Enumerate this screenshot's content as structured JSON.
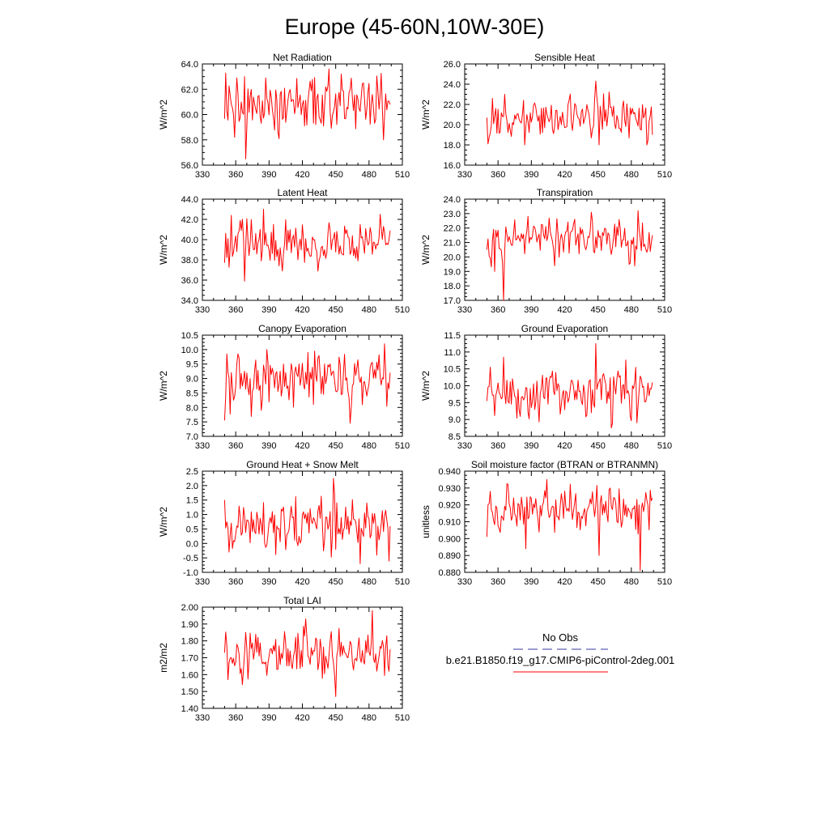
{
  "page": {
    "title": "Europe (45-60N,10W-30E)"
  },
  "legend": {
    "entries": [
      {
        "label": "No Obs",
        "color": "#3a3aa0",
        "style": "dashed"
      },
      {
        "label": "b.e21.B1850.f19_g17.CMIP6-piControl-2deg.001",
        "color": "#ff0000",
        "style": "solid"
      }
    ]
  },
  "line_color": "#ff0000",
  "chart_data": [
    {
      "type": "line",
      "title": "Net Radiation",
      "ylabel": "W/m^2",
      "xlim": [
        330,
        510
      ],
      "ylim": [
        56.0,
        64.0
      ],
      "xticks": [
        330,
        360,
        390,
        420,
        450,
        480,
        510
      ],
      "yticks": [
        56.0,
        58.0,
        60.0,
        62.0,
        64.0
      ],
      "ytick_labels": [
        "56.0",
        "58.0",
        "60.0",
        "62.0",
        "64.0"
      ],
      "x_start": 350,
      "x_end": 499,
      "series": [
        {
          "name": "b.e21.B1850.f19_g17.CMIP6-piControl-2deg.001",
          "mean": 60.9,
          "amplitude": 1.3,
          "anchors": [
            [
              369,
              56.5
            ],
            [
              444,
              63.6
            ],
            [
              352,
              60.3
            ],
            [
              359,
              58.2
            ],
            [
              368,
              63.0
            ],
            [
              399,
              58.1
            ],
            [
              455,
              63.2
            ],
            [
              485,
              59.3
            ],
            [
              499,
              60.8
            ]
          ]
        }
      ]
    },
    {
      "type": "line",
      "title": "Sensible Heat",
      "ylabel": "W/m^2",
      "xlim": [
        330,
        510
      ],
      "ylim": [
        16.0,
        26.0
      ],
      "xticks": [
        330,
        360,
        390,
        420,
        450,
        480,
        510
      ],
      "yticks": [
        16.0,
        18.0,
        20.0,
        22.0,
        24.0,
        26.0
      ],
      "ytick_labels": [
        "16.0",
        "18.0",
        "20.0",
        "22.0",
        "24.0",
        "26.0"
      ],
      "x_start": 350,
      "x_end": 499,
      "series": [
        {
          "name": "b.e21.B1850.f19_g17.CMIP6-piControl-2deg.001",
          "mean": 20.7,
          "amplitude": 1.1,
          "anchors": [
            [
              351,
              18.1
            ],
            [
              448,
              24.3
            ],
            [
              355,
              22.6
            ],
            [
              366,
              23.0
            ],
            [
              384,
              18.0
            ],
            [
              451,
              18.0
            ],
            [
              494,
              18.0
            ],
            [
              499,
              19.0
            ]
          ]
        }
      ]
    },
    {
      "type": "line",
      "title": "Latent Heat",
      "ylabel": "W/m^2",
      "xlim": [
        330,
        510
      ],
      "ylim": [
        34.0,
        44.0
      ],
      "xticks": [
        330,
        360,
        390,
        420,
        450,
        480,
        510
      ],
      "yticks": [
        34.0,
        36.0,
        38.0,
        40.0,
        42.0,
        44.0
      ],
      "ytick_labels": [
        "34.0",
        "36.0",
        "38.0",
        "40.0",
        "42.0",
        "44.0"
      ],
      "x_start": 350,
      "x_end": 499,
      "series": [
        {
          "name": "b.e21.B1850.f19_g17.CMIP6-piControl-2deg.001",
          "mean": 39.8,
          "amplitude": 1.2,
          "anchors": [
            [
              350,
              37.7
            ],
            [
              368,
              35.9
            ],
            [
              385,
              43.0
            ],
            [
              402,
              36.9
            ],
            [
              490,
              42.5
            ],
            [
              499,
              40.9
            ]
          ]
        }
      ]
    },
    {
      "type": "line",
      "title": "Transpiration",
      "ylabel": "W/m^2",
      "xlim": [
        330,
        510
      ],
      "ylim": [
        17.0,
        24.0
      ],
      "xticks": [
        330,
        360,
        390,
        420,
        450,
        480,
        510
      ],
      "yticks": [
        17.0,
        18.0,
        19.0,
        20.0,
        21.0,
        22.0,
        23.0,
        24.0
      ],
      "ytick_labels": [
        "17.0",
        "18.0",
        "19.0",
        "20.0",
        "21.0",
        "22.0",
        "23.0",
        "24.0"
      ],
      "x_start": 350,
      "x_end": 499,
      "series": [
        {
          "name": "b.e21.B1850.f19_g17.CMIP6-piControl-2deg.001",
          "mean": 21.2,
          "amplitude": 0.8,
          "anchors": [
            [
              350,
              20.5
            ],
            [
              357,
              19.0
            ],
            [
              365,
              17.0
            ],
            [
              387,
              22.8
            ],
            [
              444,
              23.1
            ],
            [
              486,
              23.2
            ],
            [
              499,
              21.5
            ]
          ]
        }
      ]
    },
    {
      "type": "line",
      "title": "Canopy Evaporation",
      "ylabel": "W/m^2",
      "xlim": [
        330,
        510
      ],
      "ylim": [
        7.0,
        10.5
      ],
      "xticks": [
        330,
        360,
        390,
        420,
        450,
        480,
        510
      ],
      "yticks": [
        7.0,
        7.5,
        8.0,
        8.5,
        9.0,
        9.5,
        10.0,
        10.5
      ],
      "ytick_labels": [
        "7.0",
        "7.5",
        "8.0",
        "8.5",
        "9.0",
        "9.5",
        "10.0",
        "10.5"
      ],
      "x_start": 350,
      "x_end": 499,
      "series": [
        {
          "name": "b.e21.B1850.f19_g17.CMIP6-piControl-2deg.001",
          "mean": 8.9,
          "amplitude": 0.55,
          "anchors": [
            [
              350,
              7.55
            ],
            [
              352,
              9.85
            ],
            [
              362,
              9.85
            ],
            [
              388,
              10.0
            ],
            [
              431,
              9.95
            ],
            [
              463,
              7.45
            ],
            [
              494,
              10.2
            ],
            [
              499,
              9.2
            ]
          ]
        }
      ]
    },
    {
      "type": "line",
      "title": "Ground Evaporation",
      "ylabel": "W/m^2",
      "xlim": [
        330,
        510
      ],
      "ylim": [
        8.5,
        11.5
      ],
      "xticks": [
        330,
        360,
        390,
        420,
        450,
        480,
        510
      ],
      "yticks": [
        8.5,
        9.0,
        9.5,
        10.0,
        10.5,
        11.0,
        11.5
      ],
      "ytick_labels": [
        "8.5",
        "9.0",
        "9.5",
        "10.0",
        "10.5",
        "11.0",
        "11.5"
      ],
      "x_start": 350,
      "x_end": 499,
      "series": [
        {
          "name": "b.e21.B1850.f19_g17.CMIP6-piControl-2deg.001",
          "mean": 9.85,
          "amplitude": 0.4,
          "anchors": [
            [
              350,
              9.55
            ],
            [
              353,
              10.55
            ],
            [
              365,
              10.85
            ],
            [
              448,
              11.25
            ],
            [
              462,
              8.75
            ],
            [
              485,
              8.9
            ],
            [
              499,
              10.1
            ]
          ]
        }
      ]
    },
    {
      "type": "line",
      "title": "Ground Heat + Snow Melt",
      "ylabel": "W/m^2",
      "xlim": [
        330,
        510
      ],
      "ylim": [
        -1.0,
        2.5
      ],
      "xticks": [
        330,
        360,
        390,
        420,
        450,
        480,
        510
      ],
      "yticks": [
        -1.0,
        -0.5,
        0.0,
        0.5,
        1.0,
        1.5,
        2.0,
        2.5
      ],
      "ytick_labels": [
        "-1.0",
        "-0.5",
        "0.0",
        "0.5",
        "1.0",
        "1.5",
        "2.0",
        "2.5"
      ],
      "x_start": 350,
      "x_end": 499,
      "series": [
        {
          "name": "b.e21.B1850.f19_g17.CMIP6-piControl-2deg.001",
          "mean": 0.6,
          "amplitude": 0.55,
          "anchors": [
            [
              350,
              1.5
            ],
            [
              354,
              -0.3
            ],
            [
              448,
              2.25
            ],
            [
              472,
              -0.7
            ],
            [
              499,
              0.6
            ]
          ]
        }
      ]
    },
    {
      "type": "line",
      "title": "Soil moisture factor (BTRAN or BTRANMN)",
      "ylabel": "unitless",
      "xlim": [
        330,
        510
      ],
      "ylim": [
        0.88,
        0.94
      ],
      "xticks": [
        330,
        360,
        390,
        420,
        450,
        480,
        510
      ],
      "yticks": [
        0.88,
        0.89,
        0.9,
        0.91,
        0.92,
        0.93,
        0.94
      ],
      "ytick_labels": [
        "0.880",
        "0.890",
        "0.900",
        "0.910",
        "0.920",
        "0.930",
        "0.940"
      ],
      "x_start": 350,
      "x_end": 499,
      "series": [
        {
          "name": "b.e21.B1850.f19_g17.CMIP6-piControl-2deg.001",
          "mean": 0.918,
          "amplitude": 0.008,
          "anchors": [
            [
              350,
              0.901
            ],
            [
              353,
              0.928
            ],
            [
              385,
              0.894
            ],
            [
              404,
              0.935
            ],
            [
              451,
              0.89
            ],
            [
              488,
              0.881
            ],
            [
              499,
              0.924
            ]
          ]
        }
      ]
    },
    {
      "type": "line",
      "title": "Total LAI",
      "ylabel": "m2/m2",
      "xlim": [
        330,
        510
      ],
      "ylim": [
        1.4,
        2.0
      ],
      "xticks": [
        330,
        360,
        390,
        420,
        450,
        480,
        510
      ],
      "yticks": [
        1.4,
        1.5,
        1.6,
        1.7,
        1.8,
        1.9,
        2.0
      ],
      "ytick_labels": [
        "1.40",
        "1.50",
        "1.60",
        "1.70",
        "1.80",
        "1.90",
        "2.00"
      ],
      "x_start": 350,
      "x_end": 499,
      "series": [
        {
          "name": "b.e21.B1850.f19_g17.CMIP6-piControl-2deg.001",
          "mean": 1.73,
          "amplitude": 0.08,
          "anchors": [
            [
              350,
              1.73
            ],
            [
              353,
              1.57
            ],
            [
              366,
              1.54
            ],
            [
              423,
              1.93
            ],
            [
              450,
              1.47
            ],
            [
              483,
              1.98
            ],
            [
              499,
              1.75
            ]
          ]
        }
      ]
    }
  ]
}
